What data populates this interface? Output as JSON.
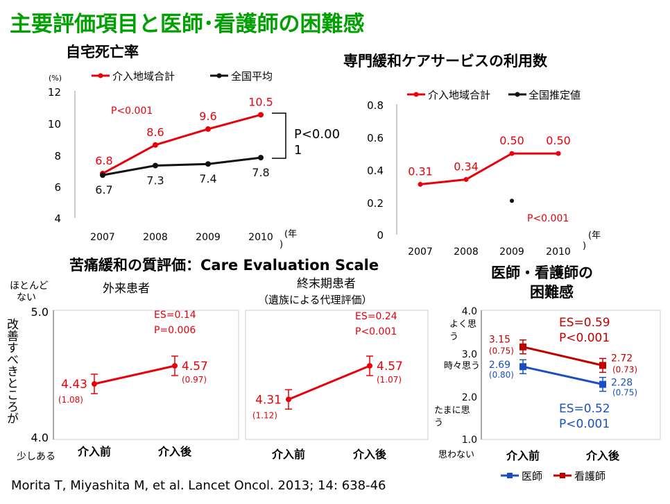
{
  "slide": {
    "title": "主要評価項目と医師･看護師の困難感",
    "citation": "Morita T, Miyashita M, et al. Lancet Oncol. 2013; 14: 638-46",
    "colors": {
      "title": "#00a000",
      "intervention": "#e8000b",
      "national": "#111111",
      "nurse": "#c00000",
      "doctor": "#1a4fc4"
    }
  },
  "chart_data": [
    {
      "type": "line",
      "title": "自宅死亡率",
      "ylabel": "(%)",
      "xlabel": "(年)",
      "categories": [
        "2007",
        "2008",
        "2009",
        "2010"
      ],
      "yticks": [
        "12",
        "10",
        "8",
        "6",
        "4"
      ],
      "ylim": [
        4,
        12
      ],
      "legend": [
        "介入地域合計",
        "全国平均"
      ],
      "series": [
        {
          "name": "介入地域合計",
          "values": [
            6.8,
            8.6,
            9.6,
            10.5
          ],
          "labels": [
            "6.8",
            "8.6",
            "9.6",
            "10.5"
          ],
          "color": "#e8000b"
        },
        {
          "name": "全国平均",
          "values": [
            6.7,
            7.3,
            7.4,
            7.8
          ],
          "labels": [
            "6.7",
            "7.3",
            "7.4",
            "7.8"
          ],
          "color": "#111111"
        }
      ],
      "annotations": [
        "P<0.001",
        "P<0.00",
        "1"
      ]
    },
    {
      "type": "line",
      "title": "専門緩和ケアサービスの利用数",
      "xlabel": "(年)",
      "categories": [
        "2007",
        "2008",
        "2009",
        "2010"
      ],
      "yticks": [
        "0.8",
        "0.6",
        "0.4",
        "0.2",
        "0"
      ],
      "ylim": [
        0,
        0.8
      ],
      "legend": [
        "介入地域合計",
        "全国推定値"
      ],
      "series": [
        {
          "name": "介入地域合計",
          "values": [
            0.31,
            0.34,
            0.5,
            0.5
          ],
          "labels": [
            "0.31",
            "0.34",
            "0.50",
            "0.50"
          ],
          "color": "#e8000b"
        },
        {
          "name": "全国推定値",
          "values": [
            null,
            null,
            0.2,
            null
          ],
          "color": "#111111"
        }
      ],
      "annotations": [
        "P<0.001"
      ]
    },
    {
      "type": "line",
      "section_title": "苦痛緩和の質評価：Care Evaluation Scale",
      "title": "外来患者",
      "categories": [
        "介入前",
        "介入後"
      ],
      "yticks": [
        "5.0",
        "4.0"
      ],
      "ylim": [
        4.0,
        5.0
      ],
      "ylabel": "改善すべきところが",
      "ytop_label": [
        "ほとんど",
        "ない"
      ],
      "ybottom_label": "少しある",
      "series": [
        {
          "values": [
            4.43,
            4.57
          ],
          "labels": [
            "4.43",
            "4.57"
          ],
          "sd": [
            "(1.08)",
            "(0.97)"
          ],
          "color": "#e8000b"
        }
      ],
      "annotations": [
        "ES=0.14",
        "P=0.006"
      ]
    },
    {
      "type": "line",
      "title": "終末期患者",
      "subtitle": "（遺族による代理評価）",
      "categories": [
        "介入前",
        "介入後"
      ],
      "ylim": [
        4.0,
        5.0
      ],
      "series": [
        {
          "values": [
            4.31,
            4.57
          ],
          "labels": [
            "4.31",
            "4.57"
          ],
          "sd": [
            "(1.12)",
            "(1.07)"
          ],
          "color": "#e8000b"
        }
      ],
      "annotations": [
        "ES=0.24",
        "P<0.001"
      ]
    },
    {
      "type": "line",
      "title": "医師・看護師の",
      "title2": "困難感",
      "categories": [
        "介入前",
        "介入後"
      ],
      "yticks": [
        "4.0",
        "3.0",
        "2.0",
        "1.0"
      ],
      "ylim": [
        1.0,
        4.0
      ],
      "ylevel_labels": [
        "よく思",
        "う",
        "時々思う",
        "たまに思",
        "う",
        "思わない"
      ],
      "legend": [
        "医師",
        "看護師"
      ],
      "series": [
        {
          "name": "看護師",
          "values": [
            3.15,
            2.72
          ],
          "labels": [
            "3.15",
            "2.72"
          ],
          "sd": [
            "(0.75)",
            "(0.73)"
          ],
          "color": "#c00000"
        },
        {
          "name": "医師",
          "values": [
            2.69,
            2.28
          ],
          "labels": [
            "2.69",
            "2.28"
          ],
          "sd": [
            "(0.80)",
            "(0.75)"
          ],
          "color": "#1a4fc4"
        }
      ],
      "annotations": [
        "ES=0.59",
        "P<0.001",
        "ES=0.52",
        "P<0.001"
      ]
    }
  ]
}
